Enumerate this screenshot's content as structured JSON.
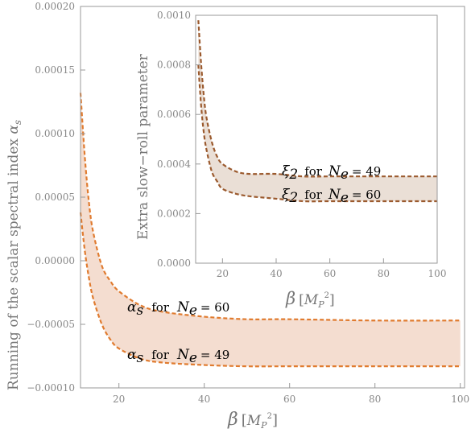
{
  "chart_data": [
    {
      "type": "area",
      "xlabel": "β [M_P²]",
      "ylabel": "Running of the scalar spectral index α_s",
      "xlim": [
        11,
        101
      ],
      "ylim": [
        -0.0001,
        0.0002
      ],
      "x_ticks": [
        "20",
        "40",
        "60",
        "80",
        "100"
      ],
      "y_ticks": [
        "−0.00010",
        "−0.00005",
        "0.00000",
        "0.00005",
        "0.00010",
        "0.00015",
        "0.00020"
      ],
      "band_color": "#f4ddd0",
      "line_color": "#e07b2f",
      "series": [
        {
          "name": "α_s for N_e = 60",
          "x": [
            11,
            12,
            13,
            14,
            16,
            18,
            20,
            25,
            30,
            40,
            50,
            60,
            80,
            100
          ],
          "y": [
            0.000132,
            8.2e-05,
            4.5e-05,
            2.2e-05,
            -4e-06,
            -1.6e-05,
            -2.4e-05,
            -3.5e-05,
            -4e-05,
            -4.4e-05,
            -4.6e-05,
            -4.6e-05,
            -4.7e-05,
            -4.7e-05
          ]
        },
        {
          "name": "α_s for N_e = 49",
          "x": [
            11,
            12,
            13,
            14,
            16,
            18,
            20,
            25,
            30,
            40,
            50,
            60,
            80,
            100
          ],
          "y": [
            3.8e-05,
            8e-06,
            -1.4e-05,
            -3e-05,
            -5e-05,
            -6.2e-05,
            -6.9e-05,
            -7.7e-05,
            -8e-05,
            -8.2e-05,
            -8.3e-05,
            -8.3e-05,
            -8.3e-05,
            -8.3e-05
          ]
        }
      ],
      "annotations": {
        "upper": {
          "symbol": "α",
          "sub": "s",
          "for": "for",
          "ne": "N",
          "ne_sub": "e",
          "eq": "= 60"
        },
        "lower": {
          "symbol": "α",
          "sub": "s",
          "for": "for",
          "ne": "N",
          "ne_sub": "e",
          "eq": "= 49"
        }
      },
      "xlabel_parts": {
        "beta": "β",
        "unit": "M",
        "unit_sub": "P",
        "unit_sup": "2"
      },
      "ylabel_parts": {
        "text": "Running of the scalar spectral index ",
        "symbol": "α",
        "sub": "s"
      }
    },
    {
      "type": "area",
      "xlabel": "β [M_P²]",
      "ylabel": "Extra slow−roll parameter",
      "xlim": [
        10,
        100
      ],
      "ylim": [
        0,
        0.001
      ],
      "x_ticks": [
        "20",
        "40",
        "60",
        "80",
        "100"
      ],
      "y_ticks": [
        "0.0000",
        "0.0002",
        "0.0004",
        "0.0006",
        "0.0008",
        "0.0010"
      ],
      "band_color": "#eadfd6",
      "line_color": "#9b5a2e",
      "series": [
        {
          "name": "ξ₂ for N_e = 49",
          "x": [
            11,
            12,
            13,
            14,
            16,
            18,
            20,
            25,
            30,
            40,
            50,
            60,
            80,
            100
          ],
          "y": [
            0.00098,
            0.00081,
            0.00068,
            0.00059,
            0.00049,
            0.00043,
            0.0004,
            0.00037,
            0.00036,
            0.00036,
            0.00035,
            0.00035,
            0.00035,
            0.00035
          ]
        },
        {
          "name": "ξ₂ for N_e = 60",
          "x": [
            11,
            12,
            13,
            14,
            16,
            18,
            20,
            25,
            30,
            40,
            50,
            60,
            80,
            100
          ],
          "y": [
            0.0008,
            0.00064,
            0.00053,
            0.00046,
            0.00037,
            0.00033,
            0.0003,
            0.00028,
            0.00027,
            0.00026,
            0.00025,
            0.00025,
            0.00025,
            0.00025
          ]
        }
      ],
      "annotations": {
        "upper": {
          "symbol": "ξ",
          "sub": "2",
          "for": "for",
          "ne": "N",
          "ne_sub": "e",
          "eq": "= 49"
        },
        "lower": {
          "symbol": "ξ",
          "sub": "2",
          "for": "for",
          "ne": "N",
          "ne_sub": "e",
          "eq": "= 60"
        }
      },
      "xlabel_parts": {
        "beta": "β",
        "unit": "M",
        "unit_sub": "P",
        "unit_sup": "2"
      }
    }
  ]
}
